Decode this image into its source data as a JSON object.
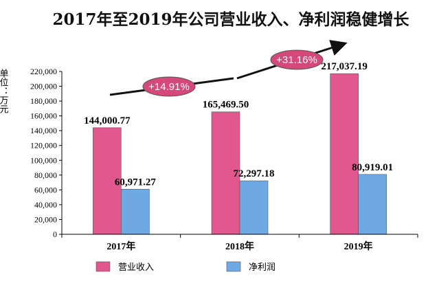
{
  "chart_data": {
    "type": "bar",
    "title": "2017年至2019年公司营业收入、净利润稳健增长",
    "ylabel": "单位：万元",
    "categories": [
      "2017年",
      "2018年",
      "2019年"
    ],
    "series": [
      {
        "name": "营业收入",
        "values": [
          144000.77,
          165469.5,
          217037.19
        ],
        "labels": [
          "144,000.77",
          "165,469.50",
          "217,037.19"
        ],
        "color": "#e0588e"
      },
      {
        "name": "净利润",
        "values": [
          60971.27,
          72297.18,
          80919.01
        ],
        "labels": [
          "60,971.27",
          "72,297.18",
          "80,919.01"
        ],
        "color": "#6fa9e4"
      }
    ],
    "ylim": [
      0,
      220000
    ],
    "yticks": [
      0,
      20000,
      40000,
      60000,
      80000,
      100000,
      120000,
      140000,
      160000,
      180000,
      200000,
      220000
    ],
    "ytick_labels": [
      "0",
      "20,000",
      "40,000",
      "60,000",
      "80,000",
      "100,000",
      "120,000",
      "140,000",
      "160,000",
      "180,000",
      "200,000",
      "220,000"
    ],
    "grid": false,
    "legend_position": "bottom",
    "annotations": [
      "+14.91%",
      "+31.16%"
    ],
    "annotation_color": "#d5487a"
  }
}
